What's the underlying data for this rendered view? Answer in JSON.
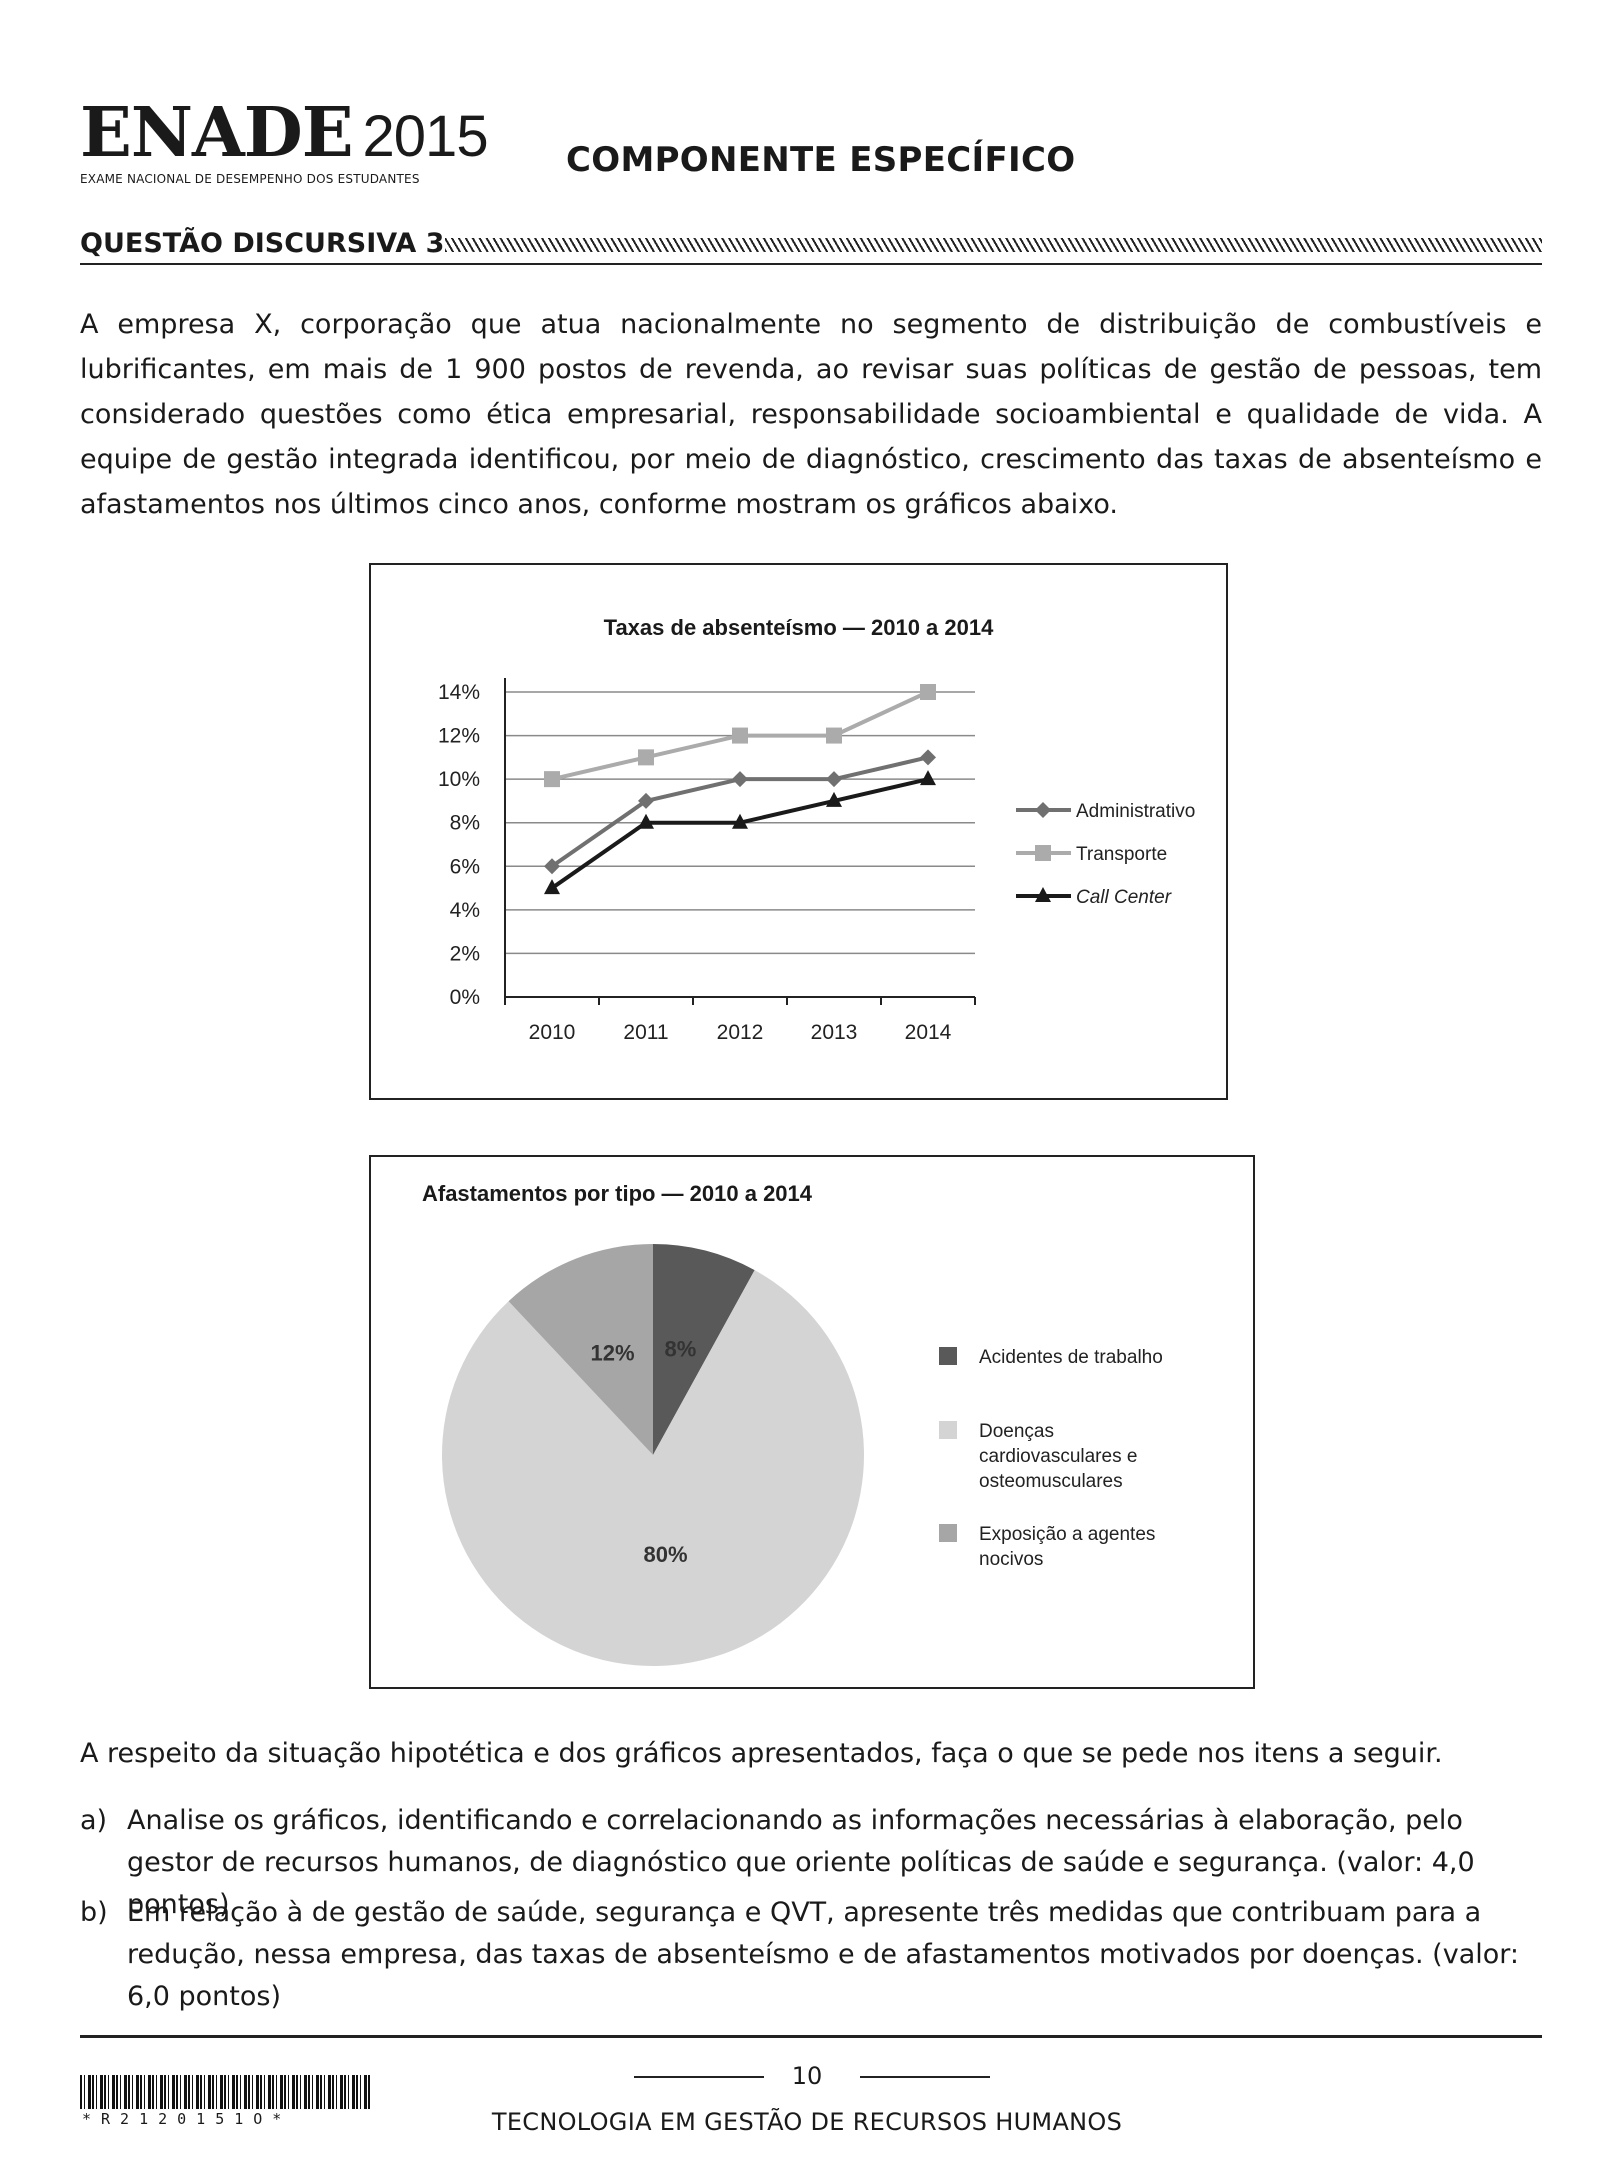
{
  "header": {
    "logo_main": "ENADE",
    "logo_year": "2015",
    "logo_sub": "EXAME NACIONAL DE DESEMPENHO DOS ESTUDANTES",
    "component_title": "COMPONENTE ESPECÍFICO"
  },
  "question": {
    "title": "QUESTÃO DISCURSIVA 3",
    "intro": "A empresa X, corporação que atua nacionalmente no segmento de distribuição de combustíveis e lubrificantes, em mais de 1 900 postos de revenda, ao revisar suas políticas de gestão de pessoas, tem considerado questões como ética empresarial, responsabilidade socioambiental e qualidade de vida. A equipe de gestão integrada identificou, por meio de diagnóstico, crescimento das taxas de absenteísmo e afastamentos nos últimos cinco anos, conforme mostram os gráficos abaixo.",
    "after_charts": "A respeito da situação hipotética e dos gráficos apresentados, faça o que se pede nos itens a seguir.",
    "items": [
      {
        "label": "a)",
        "text": "Analise os gráficos, identificando e correlacionando as informações necessárias à elaboração, pelo gestor de recursos humanos, de diagnóstico que oriente políticas de saúde e segurança. (valor: 4,0 pontos)"
      },
      {
        "label": "b)",
        "text": "Em relação à de gestão de saúde, segurança e QVT, apresente três medidas que contribuam para a redução, nessa empresa, das taxas de absenteísmo e de afastamentos motivados por doenças. (valor: 6,0 pontos)"
      }
    ]
  },
  "chart_data": [
    {
      "type": "line",
      "title": "Taxas de absenteísmo — 2010 a 2014",
      "categories": [
        "2010",
        "2011",
        "2012",
        "2013",
        "2014"
      ],
      "y_ticks": [
        "0%",
        "2%",
        "4%",
        "6%",
        "8%",
        "10%",
        "12%",
        "14%"
      ],
      "ylim": [
        0,
        14
      ],
      "grid": true,
      "legend_position": "right",
      "series": [
        {
          "name": "Administrativo",
          "values": [
            6,
            9,
            10,
            10,
            11
          ],
          "marker": "diamond",
          "color": "#707070"
        },
        {
          "name": "Transporte",
          "values": [
            10,
            11,
            12,
            12,
            14
          ],
          "marker": "square",
          "color": "#ababab"
        },
        {
          "name": "Call Center",
          "values": [
            5,
            8,
            8,
            9,
            10
          ],
          "marker": "triangle",
          "color": "#1a1a1a"
        }
      ]
    },
    {
      "type": "pie",
      "title": "Afastamentos por tipo — 2010 a 2014",
      "legend_position": "right",
      "slices": [
        {
          "name": "Acidentes de trabalho",
          "value": 8,
          "label": "8%",
          "color": "#595959"
        },
        {
          "name": "Doenças cardiovasculares e osteomusculares",
          "name_lines": [
            "Doenças",
            "cardiovasculares e",
            "osteomusculares"
          ],
          "value": 80,
          "label": "80%",
          "color": "#d4d4d4"
        },
        {
          "name": "Exposição a agentes nocivos",
          "name_lines": [
            "Exposição a agentes",
            "nocivos"
          ],
          "value": 12,
          "label": "12%",
          "color": "#a6a6a6"
        }
      ]
    }
  ],
  "footer": {
    "page_number": "10",
    "course": "TECNOLOGIA EM GESTÃO DE RECURSOS HUMANOS",
    "barcode_text": "*R2120151O*"
  }
}
